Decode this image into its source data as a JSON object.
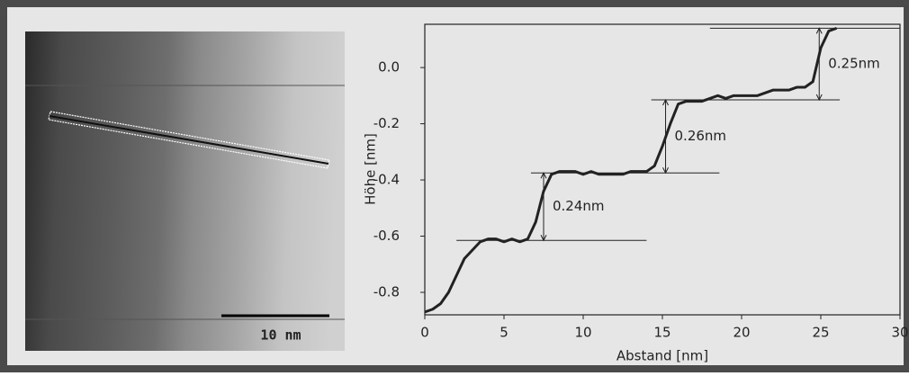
{
  "image": {
    "scale_label": "10 nm"
  },
  "chart_data": {
    "type": "line",
    "x_label": "Abstand [nm]",
    "y_label": "Höhe [nm]",
    "xlim": [
      0,
      30
    ],
    "ylim": [
      -0.88,
      0.154
    ],
    "xticks": [
      0,
      5,
      10,
      15,
      20,
      25,
      30
    ],
    "yticks": [
      {
        "value": 0,
        "label": "0.0"
      },
      -0.2,
      -0.4,
      -0.6,
      -0.8
    ],
    "series": [
      {
        "color": "#222222",
        "x": [
          0,
          0.5,
          1,
          1.5,
          2,
          2.5,
          3,
          3.5,
          4,
          4.5,
          5,
          5.5,
          6,
          6.5,
          7,
          7.5,
          8,
          8.5,
          9,
          9.5,
          10,
          10.5,
          11,
          11.5,
          12,
          12.5,
          13,
          13.5,
          14,
          14.5,
          15,
          15.5,
          16,
          16.5,
          17,
          17.5,
          18,
          18.5,
          19,
          19.5,
          20,
          20.5,
          21,
          21.5,
          22,
          22.5,
          23,
          23.5,
          24,
          24.5,
          25,
          25.5,
          26
        ],
        "values": [
          -0.87,
          -0.86,
          -0.84,
          -0.8,
          -0.74,
          -0.68,
          -0.65,
          -0.62,
          -0.61,
          -0.61,
          -0.62,
          -0.61,
          -0.62,
          -0.61,
          -0.55,
          -0.44,
          -0.38,
          -0.37,
          -0.37,
          -0.37,
          -0.38,
          -0.37,
          -0.38,
          -0.38,
          -0.38,
          -0.38,
          -0.37,
          -0.37,
          -0.37,
          -0.35,
          -0.28,
          -0.2,
          -0.13,
          -0.12,
          -0.12,
          -0.12,
          -0.11,
          -0.1,
          -0.11,
          -0.1,
          -0.1,
          -0.1,
          -0.1,
          -0.09,
          -0.08,
          -0.08,
          -0.08,
          -0.07,
          -0.07,
          -0.05,
          0.07,
          0.13,
          0.14
        ]
      }
    ],
    "levels": [
      {
        "y": -0.615,
        "x": [
          2,
          14
        ]
      },
      {
        "y": -0.375,
        "x": [
          6.7,
          18.6
        ]
      },
      {
        "y": -0.115,
        "x": [
          14.3,
          26.2
        ]
      },
      {
        "y": 0.14,
        "x": [
          18,
          30
        ]
      }
    ],
    "annotations": [
      {
        "text": "0.24nm",
        "x": 7.5,
        "y": [
          -0.615,
          -0.375
        ]
      },
      {
        "text": "0.26nm",
        "x": 15.2,
        "y": [
          -0.375,
          -0.115
        ]
      },
      {
        "text": "0.25nm",
        "x": 24.9,
        "y": [
          -0.115,
          0.14
        ]
      }
    ]
  }
}
